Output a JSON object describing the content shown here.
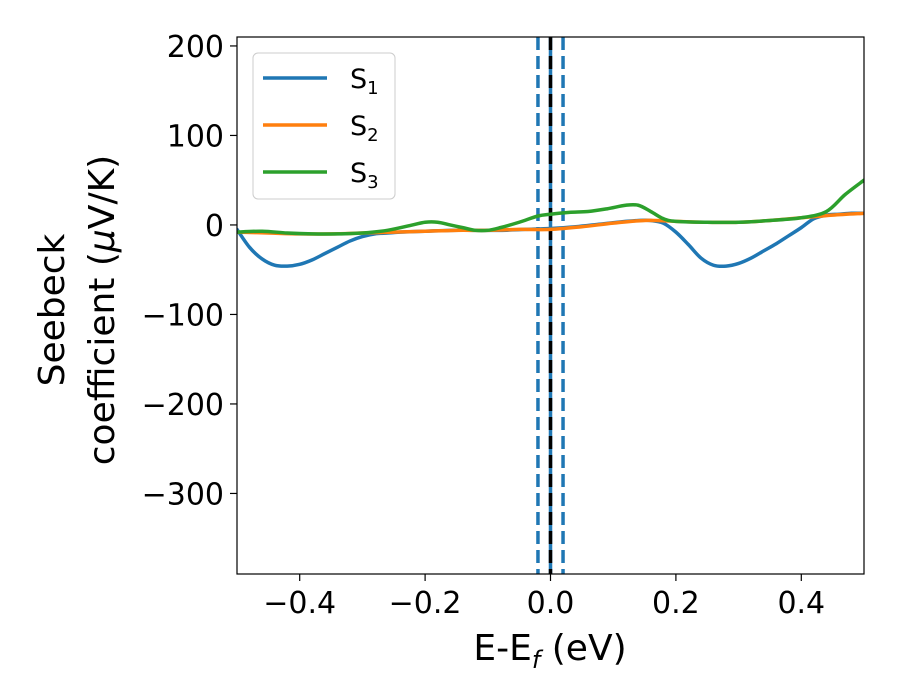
{
  "chart_data": {
    "type": "line",
    "xlabel": "E-E",
    "xlabel_sub": "f",
    "xlabel_unit": " (eV)",
    "ylabel_line1": "Seebeck",
    "ylabel_line2_pre": "coefficient  (",
    "ylabel_mu": "μ",
    "ylabel_line2_post": "V/K)",
    "xlim": [
      -0.5,
      0.5
    ],
    "ylim": [
      -390,
      210
    ],
    "xticks": [
      -0.4,
      -0.2,
      0.0,
      0.2,
      0.4
    ],
    "xtick_labels": [
      "−0.4",
      "−0.2",
      "0.0",
      "0.2",
      "0.4"
    ],
    "yticks": [
      200,
      100,
      0,
      -100,
      -200,
      -300
    ],
    "ytick_labels": [
      "200",
      "100",
      "0",
      "−100",
      "−200",
      "−300"
    ],
    "grid": false,
    "legend_position": "top-left",
    "vlines": [
      {
        "x": -0.02,
        "style": "dashed",
        "color": "#1f77b4"
      },
      {
        "x": 0.02,
        "style": "dashed",
        "color": "#1f77b4"
      },
      {
        "x": 0.0,
        "style": "solid",
        "color": "#1f77b4"
      },
      {
        "x": 0.0,
        "style": "dashed",
        "color": "#000000"
      }
    ],
    "series": [
      {
        "name": "S",
        "sub": "1",
        "color": "#1f77b4",
        "points": [
          [
            -0.5,
            -5
          ],
          [
            -0.48,
            -25
          ],
          [
            -0.46,
            -38
          ],
          [
            -0.44,
            -45
          ],
          [
            -0.42,
            -46
          ],
          [
            -0.4,
            -44
          ],
          [
            -0.38,
            -39
          ],
          [
            -0.36,
            -32
          ],
          [
            -0.34,
            -25
          ],
          [
            -0.32,
            -18
          ],
          [
            -0.3,
            -13
          ],
          [
            -0.28,
            -10
          ],
          [
            -0.26,
            -9
          ],
          [
            -0.24,
            -8
          ],
          [
            -0.2,
            -7
          ],
          [
            -0.16,
            -6
          ],
          [
            -0.12,
            -6
          ],
          [
            -0.08,
            -6
          ],
          [
            -0.04,
            -5
          ],
          [
            0.0,
            -4
          ],
          [
            0.04,
            -2
          ],
          [
            0.08,
            1
          ],
          [
            0.12,
            4
          ],
          [
            0.14,
            5
          ],
          [
            0.16,
            5
          ],
          [
            0.18,
            2
          ],
          [
            0.2,
            -8
          ],
          [
            0.22,
            -22
          ],
          [
            0.24,
            -37
          ],
          [
            0.26,
            -45
          ],
          [
            0.28,
            -46
          ],
          [
            0.3,
            -43
          ],
          [
            0.32,
            -37
          ],
          [
            0.34,
            -29
          ],
          [
            0.36,
            -21
          ],
          [
            0.38,
            -12
          ],
          [
            0.4,
            -3
          ],
          [
            0.42,
            7
          ],
          [
            0.44,
            11
          ],
          [
            0.46,
            12
          ],
          [
            0.48,
            13
          ],
          [
            0.5,
            13
          ]
        ]
      },
      {
        "name": "S",
        "sub": "2",
        "color": "#ff7f0e",
        "points": [
          [
            -0.5,
            -8
          ],
          [
            -0.45,
            -9
          ],
          [
            -0.4,
            -10
          ],
          [
            -0.35,
            -10
          ],
          [
            -0.3,
            -9
          ],
          [
            -0.25,
            -8
          ],
          [
            -0.2,
            -7
          ],
          [
            -0.15,
            -6
          ],
          [
            -0.1,
            -6
          ],
          [
            -0.05,
            -5
          ],
          [
            0.0,
            -5
          ],
          [
            0.05,
            -2
          ],
          [
            0.1,
            2
          ],
          [
            0.15,
            5
          ],
          [
            0.2,
            4
          ],
          [
            0.25,
            3
          ],
          [
            0.3,
            3
          ],
          [
            0.35,
            5
          ],
          [
            0.4,
            8
          ],
          [
            0.45,
            11
          ],
          [
            0.5,
            13
          ]
        ]
      },
      {
        "name": "S",
        "sub": "3",
        "color": "#2ca02c",
        "points": [
          [
            -0.5,
            -8
          ],
          [
            -0.46,
            -7
          ],
          [
            -0.42,
            -9
          ],
          [
            -0.38,
            -10
          ],
          [
            -0.34,
            -10
          ],
          [
            -0.3,
            -9
          ],
          [
            -0.26,
            -6
          ],
          [
            -0.22,
            0
          ],
          [
            -0.2,
            3
          ],
          [
            -0.18,
            3
          ],
          [
            -0.16,
            0
          ],
          [
            -0.14,
            -3
          ],
          [
            -0.12,
            -6
          ],
          [
            -0.1,
            -6
          ],
          [
            -0.08,
            -3
          ],
          [
            -0.05,
            3
          ],
          [
            -0.02,
            10
          ],
          [
            0.0,
            12
          ],
          [
            0.03,
            14
          ],
          [
            0.06,
            15
          ],
          [
            0.09,
            18
          ],
          [
            0.12,
            22
          ],
          [
            0.14,
            22
          ],
          [
            0.16,
            15
          ],
          [
            0.18,
            7
          ],
          [
            0.2,
            4
          ],
          [
            0.25,
            3
          ],
          [
            0.3,
            3
          ],
          [
            0.35,
            5
          ],
          [
            0.4,
            8
          ],
          [
            0.44,
            15
          ],
          [
            0.47,
            34
          ],
          [
            0.5,
            50
          ]
        ]
      }
    ]
  }
}
